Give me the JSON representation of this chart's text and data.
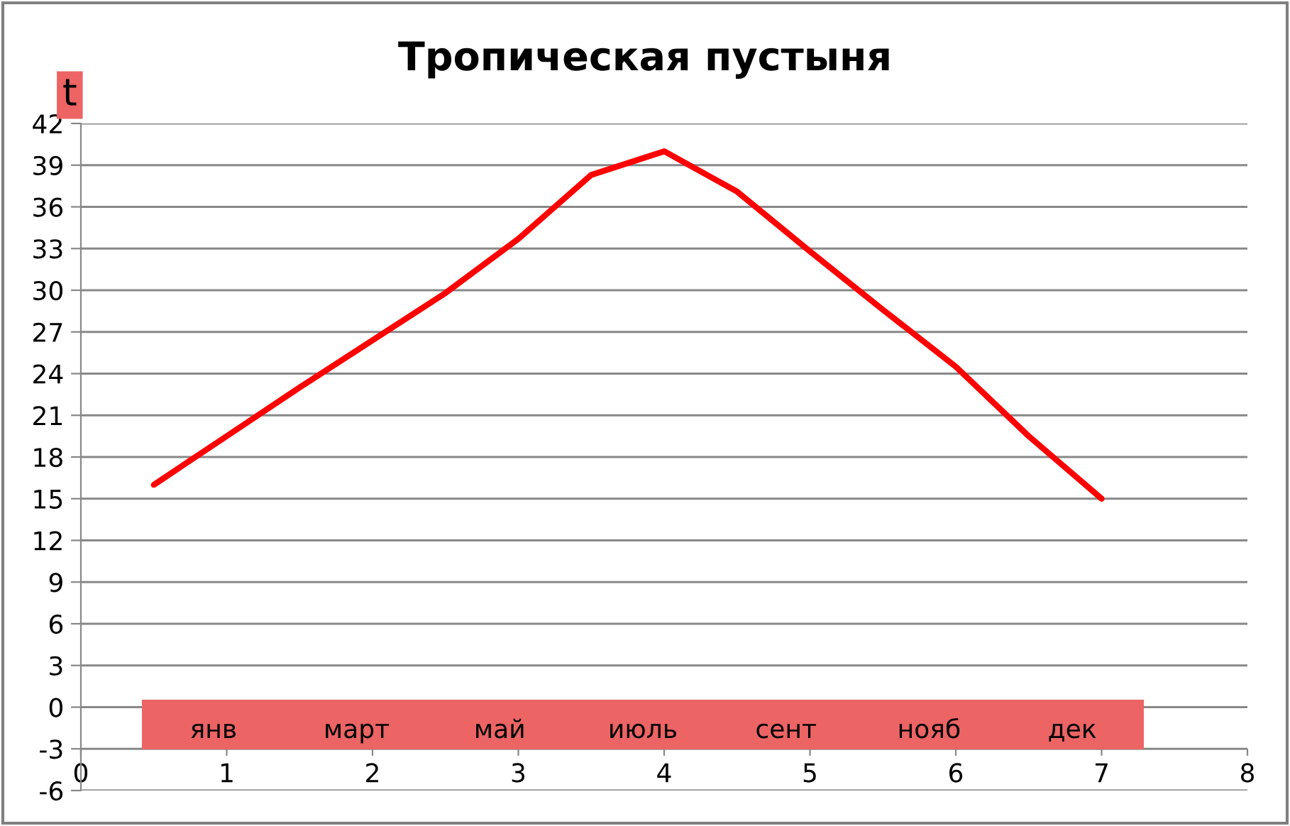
{
  "chart_data": {
    "type": "line",
    "title": "Тропическая пустыня",
    "ylabel": "t",
    "annotations": [
      "янв",
      "март",
      "май",
      "июль",
      "сент",
      "нояб",
      "дек"
    ],
    "series": [
      {
        "color": "#ff0000",
        "x": [
          0.5,
          1,
          1.5,
          2,
          2.5,
          3,
          3.5,
          4,
          4.5,
          5,
          5.5,
          6,
          6.5,
          7
        ],
        "values": [
          16,
          19.5,
          23,
          26.4,
          29.8,
          33.7,
          38.3,
          40,
          37.1,
          32.8,
          28.6,
          24.5,
          19.5,
          15
        ]
      }
    ],
    "xlim": [
      0,
      8
    ],
    "xticks": [
      0,
      1,
      2,
      3,
      4,
      5,
      6,
      7,
      8
    ],
    "ylim": [
      -6,
      42
    ],
    "yticks": [
      -6,
      -3,
      0,
      3,
      6,
      9,
      12,
      15,
      18,
      21,
      24,
      27,
      30,
      33,
      36,
      39,
      42
    ],
    "grid": "y",
    "marker": "none",
    "line_style": "solid"
  }
}
